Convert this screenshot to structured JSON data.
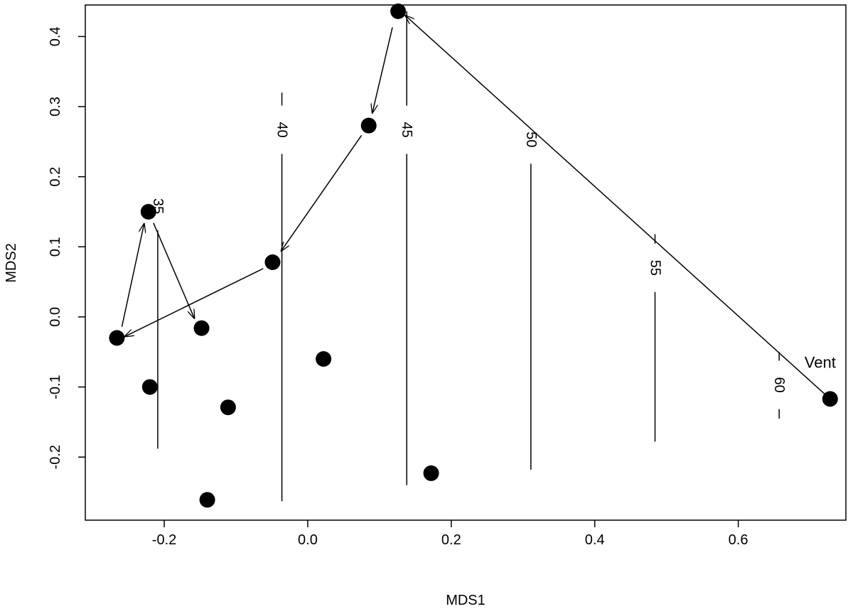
{
  "chart_data": {
    "type": "scatter",
    "xlabel": "MDS1",
    "ylabel": "MDS2",
    "xlim": [
      -0.31,
      0.75
    ],
    "ylim": [
      -0.29,
      0.445
    ],
    "xticks": [
      -0.2,
      0.0,
      0.2,
      0.4,
      0.6
    ],
    "xtick_labels": [
      "-0.2",
      "0.0",
      "0.2",
      "0.4",
      "0.6"
    ],
    "yticks": [
      -0.2,
      -0.1,
      0.0,
      0.1,
      0.2,
      0.3,
      0.4
    ],
    "ytick_labels": [
      "-0.2",
      "-0.1",
      "0.0",
      "0.1",
      "0.2",
      "0.3",
      "0.4"
    ],
    "grid": false,
    "points": [
      {
        "x": -0.266,
        "y": -0.03
      },
      {
        "x": -0.222,
        "y": 0.15
      },
      {
        "x": -0.148,
        "y": -0.016
      },
      {
        "x": -0.22,
        "y": -0.1
      },
      {
        "x": -0.111,
        "y": -0.129
      },
      {
        "x": -0.14,
        "y": -0.261
      },
      {
        "x": -0.049,
        "y": 0.078
      },
      {
        "x": 0.022,
        "y": -0.06
      },
      {
        "x": 0.085,
        "y": 0.273
      },
      {
        "x": 0.126,
        "y": 0.436
      },
      {
        "x": 0.172,
        "y": -0.223
      },
      {
        "x": 0.728,
        "y": -0.117,
        "label": "Vent"
      }
    ],
    "arrows": [
      {
        "from": [
          0.728,
          -0.117
        ],
        "to": [
          0.136,
          0.43
        ]
      },
      {
        "from": [
          0.118,
          0.413
        ],
        "to": [
          0.09,
          0.291
        ]
      },
      {
        "from": [
          0.075,
          0.259
        ],
        "to": [
          -0.037,
          0.094
        ]
      },
      {
        "from": [
          -0.062,
          0.069
        ],
        "to": [
          -0.255,
          -0.028
        ]
      },
      {
        "from": [
          -0.259,
          -0.014
        ],
        "to": [
          -0.228,
          0.133
        ]
      },
      {
        "from": [
          -0.215,
          0.134
        ],
        "to": [
          -0.158,
          -0.002
        ]
      }
    ],
    "contours": [
      {
        "label": "35",
        "x": -0.209,
        "y_bottom": -0.188,
        "y_top": 0.177,
        "y_label": 0.158
      },
      {
        "label": "40",
        "x": -0.036,
        "y_bottom": -0.263,
        "y_top": 0.32,
        "y_label": 0.267
      },
      {
        "label": "45",
        "x": 0.138,
        "y_bottom": -0.24,
        "y_top": 0.436,
        "y_label": 0.267
      },
      {
        "label": "50",
        "x": 0.311,
        "y_bottom": -0.218,
        "y_top": 0.287,
        "y_label": 0.253
      },
      {
        "label": "55",
        "x": 0.484,
        "y_bottom": -0.178,
        "y_top": 0.118,
        "y_label": 0.07
      },
      {
        "label": "60",
        "x": 0.657,
        "y_bottom": -0.145,
        "y_top": -0.05,
        "y_label": -0.097
      }
    ]
  }
}
